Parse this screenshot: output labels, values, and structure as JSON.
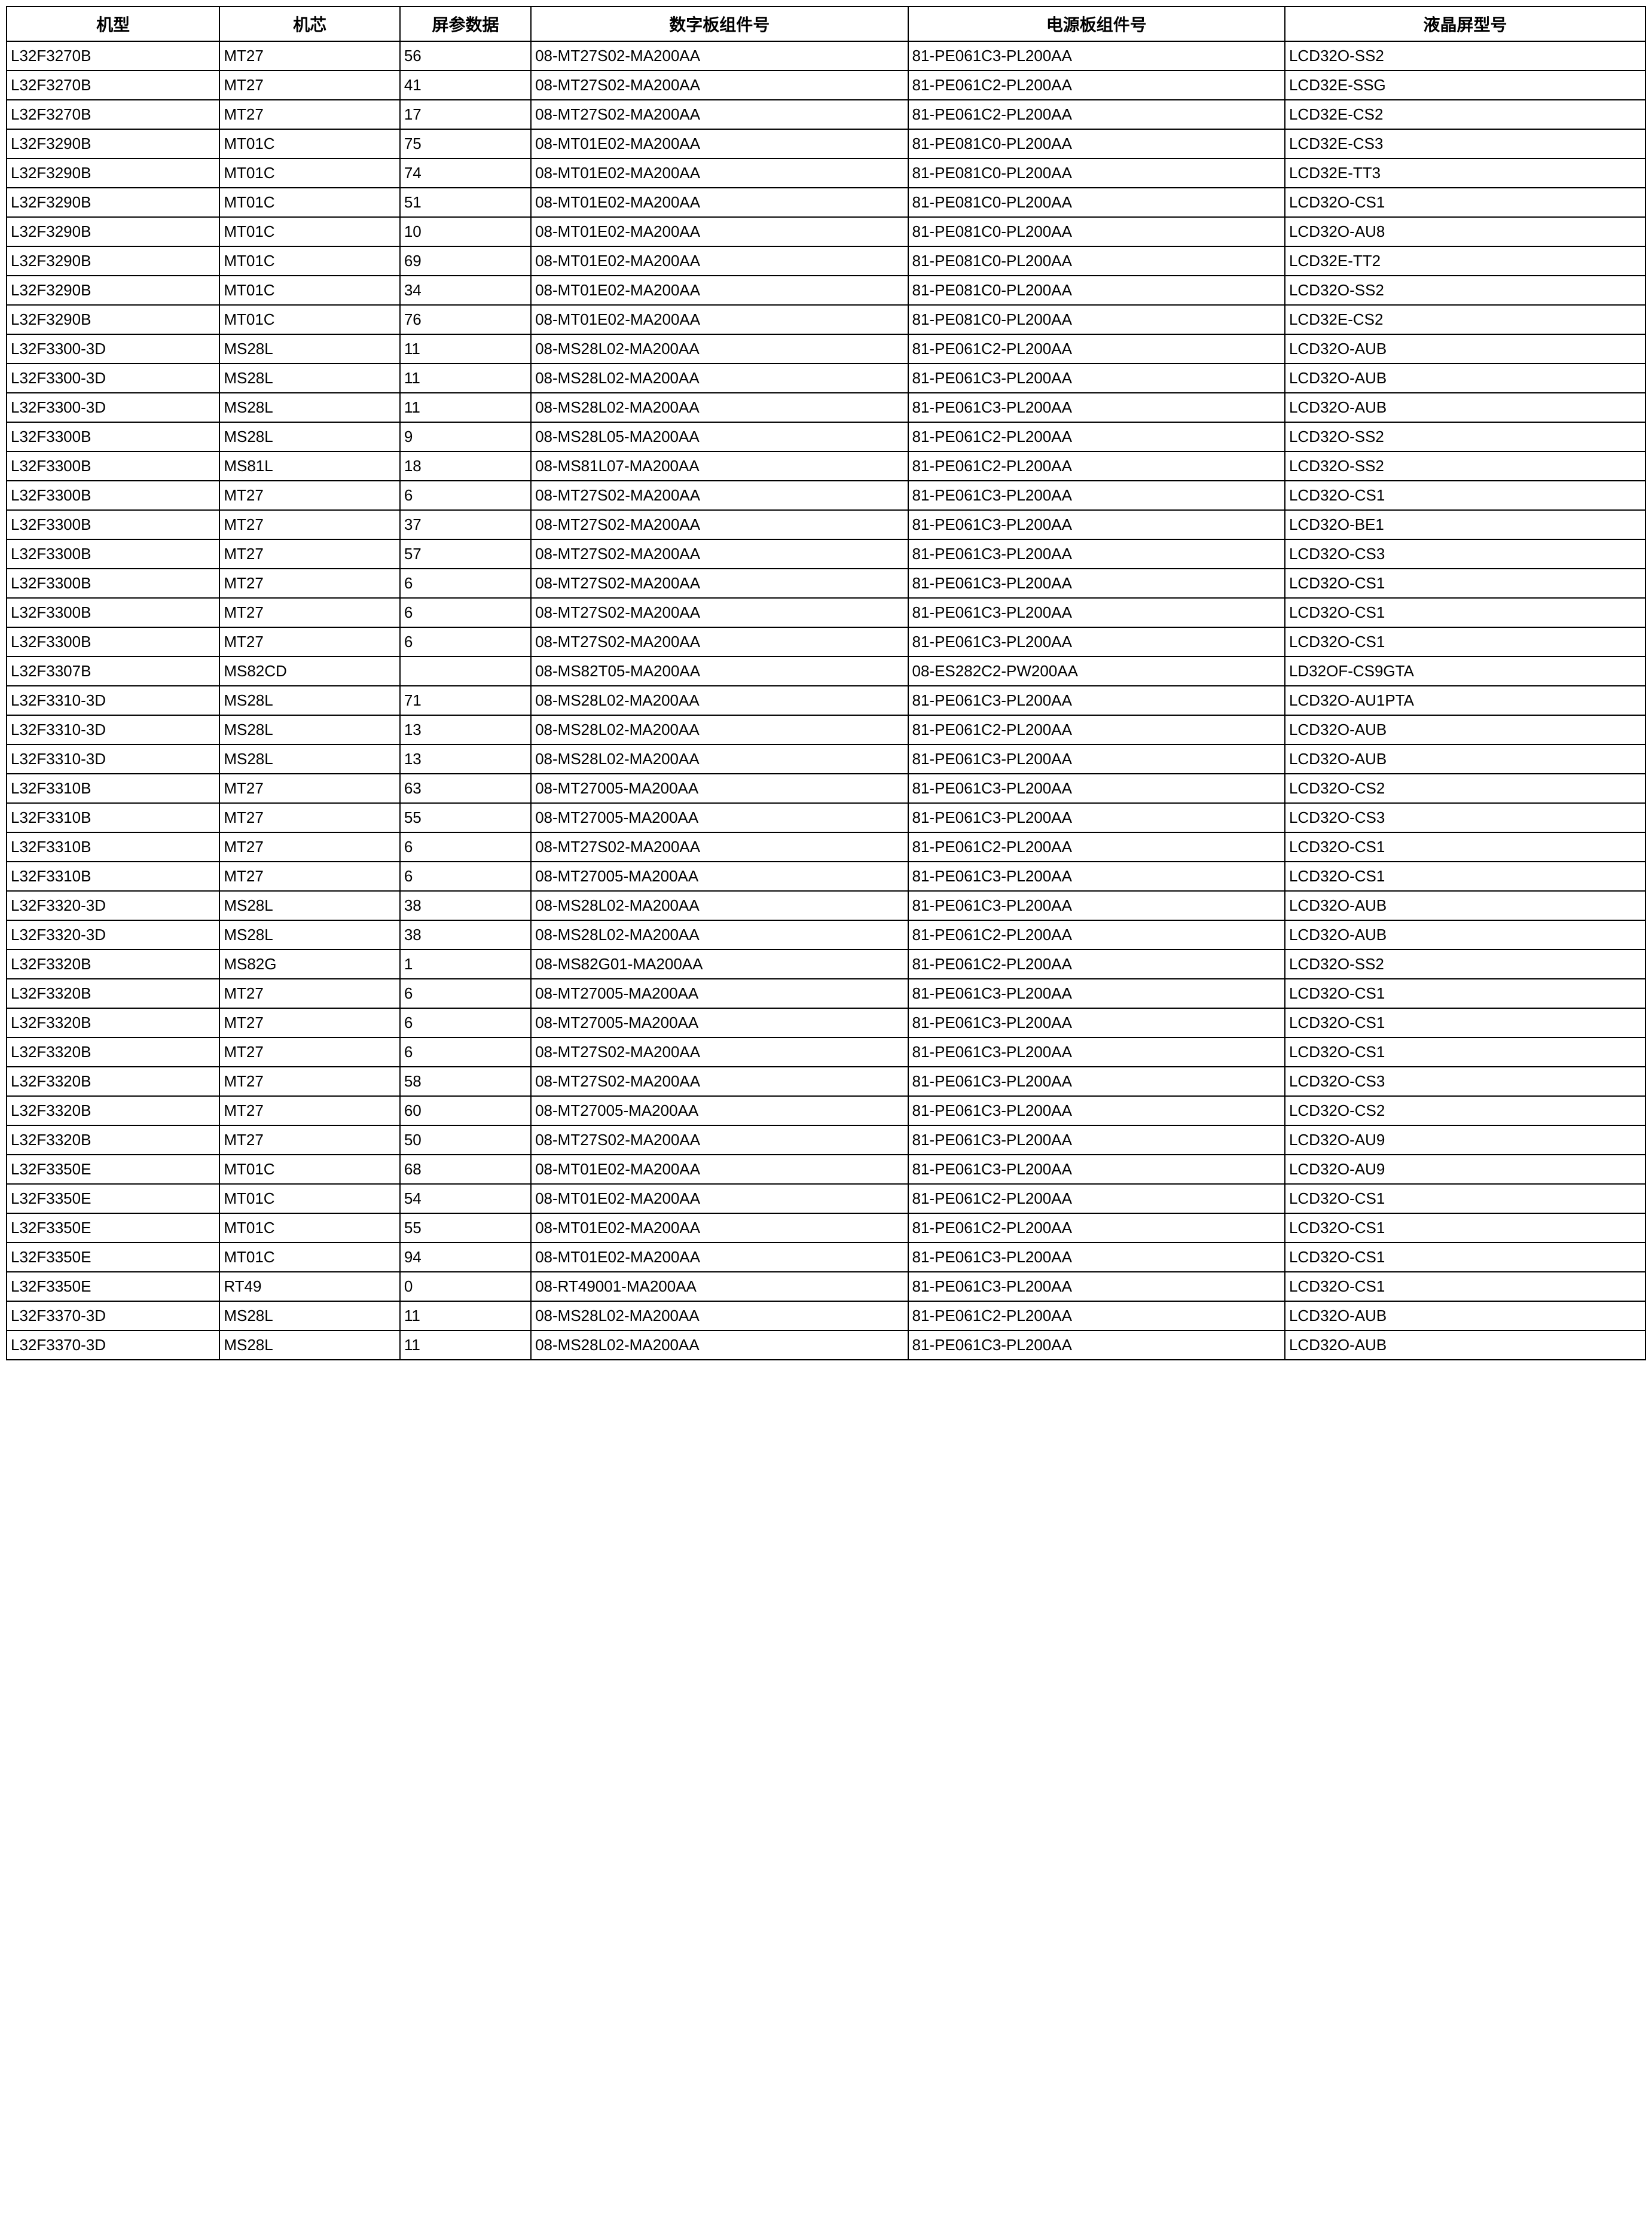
{
  "table": {
    "columns": [
      "机型",
      "机芯",
      "屏参数据",
      "数字板组件号",
      "电源板组件号",
      "液晶屏型号"
    ],
    "column_widths": [
      "13%",
      "11%",
      "8%",
      "23%",
      "23%",
      "22%"
    ],
    "header_fontsize": 28,
    "cell_fontsize": 26,
    "border_color": "#000000",
    "border_width": 2,
    "background_color": "#ffffff",
    "text_color": "#000000",
    "rows": [
      [
        "L32F3270B",
        "MT27",
        "56",
        "08-MT27S02-MA200AA",
        "81-PE061C3-PL200AA",
        "LCD32O-SS2"
      ],
      [
        "L32F3270B",
        "MT27",
        "41",
        "08-MT27S02-MA200AA",
        "81-PE061C2-PL200AA",
        "LCD32E-SSG"
      ],
      [
        "L32F3270B",
        "MT27",
        "17",
        "08-MT27S02-MA200AA",
        "81-PE061C2-PL200AA",
        "LCD32E-CS2"
      ],
      [
        "L32F3290B",
        "MT01C",
        "75",
        "08-MT01E02-MA200AA",
        "81-PE081C0-PL200AA",
        "LCD32E-CS3"
      ],
      [
        "L32F3290B",
        "MT01C",
        "74",
        "08-MT01E02-MA200AA",
        "81-PE081C0-PL200AA",
        "LCD32E-TT3"
      ],
      [
        "L32F3290B",
        "MT01C",
        "51",
        "08-MT01E02-MA200AA",
        "81-PE081C0-PL200AA",
        "LCD32O-CS1"
      ],
      [
        "L32F3290B",
        "MT01C",
        "10",
        "08-MT01E02-MA200AA",
        "81-PE081C0-PL200AA",
        "LCD32O-AU8"
      ],
      [
        "L32F3290B",
        "MT01C",
        "69",
        "08-MT01E02-MA200AA",
        "81-PE081C0-PL200AA",
        "LCD32E-TT2"
      ],
      [
        "L32F3290B",
        "MT01C",
        "34",
        "08-MT01E02-MA200AA",
        "81-PE081C0-PL200AA",
        "LCD32O-SS2"
      ],
      [
        "L32F3290B",
        "MT01C",
        "76",
        "08-MT01E02-MA200AA",
        "81-PE081C0-PL200AA",
        "LCD32E-CS2"
      ],
      [
        "L32F3300-3D",
        "MS28L",
        "11",
        "08-MS28L02-MA200AA",
        "81-PE061C2-PL200AA",
        "LCD32O-AUB"
      ],
      [
        "L32F3300-3D",
        "MS28L",
        "11",
        "08-MS28L02-MA200AA",
        "81-PE061C3-PL200AA",
        "LCD32O-AUB"
      ],
      [
        "L32F3300-3D",
        "MS28L",
        "11",
        "08-MS28L02-MA200AA",
        "81-PE061C3-PL200AA",
        "LCD32O-AUB"
      ],
      [
        "L32F3300B",
        "MS28L",
        "9",
        "08-MS28L05-MA200AA",
        "81-PE061C2-PL200AA",
        "LCD32O-SS2"
      ],
      [
        "L32F3300B",
        "MS81L",
        "18",
        "08-MS81L07-MA200AA",
        "81-PE061C2-PL200AA",
        "LCD32O-SS2"
      ],
      [
        "L32F3300B",
        "MT27",
        "6",
        "08-MT27S02-MA200AA",
        "81-PE061C3-PL200AA",
        "LCD32O-CS1"
      ],
      [
        "L32F3300B",
        "MT27",
        "37",
        "08-MT27S02-MA200AA",
        "81-PE061C3-PL200AA",
        "LCD32O-BE1"
      ],
      [
        "L32F3300B",
        "MT27",
        "57",
        "08-MT27S02-MA200AA",
        "81-PE061C3-PL200AA",
        "LCD32O-CS3"
      ],
      [
        "L32F3300B",
        "MT27",
        "6",
        "08-MT27S02-MA200AA",
        "81-PE061C3-PL200AA",
        "LCD32O-CS1"
      ],
      [
        "L32F3300B",
        "MT27",
        "6",
        "08-MT27S02-MA200AA",
        "81-PE061C3-PL200AA",
        "LCD32O-CS1"
      ],
      [
        "L32F3300B",
        "MT27",
        "6",
        "08-MT27S02-MA200AA",
        "81-PE061C3-PL200AA",
        "LCD32O-CS1"
      ],
      [
        "L32F3307B",
        "MS82CD",
        "",
        "08-MS82T05-MA200AA",
        "08-ES282C2-PW200AA",
        "LD32OF-CS9GTA"
      ],
      [
        "L32F3310-3D",
        "MS28L",
        "71",
        "08-MS28L02-MA200AA",
        "81-PE061C3-PL200AA",
        "LCD32O-AU1PTA"
      ],
      [
        "L32F3310-3D",
        "MS28L",
        "13",
        "08-MS28L02-MA200AA",
        "81-PE061C2-PL200AA",
        "LCD32O-AUB"
      ],
      [
        "L32F3310-3D",
        "MS28L",
        "13",
        "08-MS28L02-MA200AA",
        "81-PE061C3-PL200AA",
        "LCD32O-AUB"
      ],
      [
        "L32F3310B",
        "MT27",
        "63",
        "08-MT27005-MA200AA",
        "81-PE061C3-PL200AA",
        "LCD32O-CS2"
      ],
      [
        "L32F3310B",
        "MT27",
        "55",
        "08-MT27005-MA200AA",
        "81-PE061C3-PL200AA",
        "LCD32O-CS3"
      ],
      [
        "L32F3310B",
        "MT27",
        "6",
        "08-MT27S02-MA200AA",
        "81-PE061C2-PL200AA",
        "LCD32O-CS1"
      ],
      [
        "L32F3310B",
        "MT27",
        "6",
        "08-MT27005-MA200AA",
        "81-PE061C3-PL200AA",
        "LCD32O-CS1"
      ],
      [
        "L32F3320-3D",
        "MS28L",
        "38",
        "08-MS28L02-MA200AA",
        "81-PE061C3-PL200AA",
        "LCD32O-AUB"
      ],
      [
        "L32F3320-3D",
        "MS28L",
        "38",
        "08-MS28L02-MA200AA",
        "81-PE061C2-PL200AA",
        "LCD32O-AUB"
      ],
      [
        "L32F3320B",
        "MS82G",
        "1",
        "08-MS82G01-MA200AA",
        "81-PE061C2-PL200AA",
        "LCD32O-SS2"
      ],
      [
        "L32F3320B",
        "MT27",
        "6",
        "08-MT27005-MA200AA",
        "81-PE061C3-PL200AA",
        "LCD32O-CS1"
      ],
      [
        "L32F3320B",
        "MT27",
        "6",
        "08-MT27005-MA200AA",
        "81-PE061C3-PL200AA",
        "LCD32O-CS1"
      ],
      [
        "L32F3320B",
        "MT27",
        "6",
        "08-MT27S02-MA200AA",
        "81-PE061C3-PL200AA",
        "LCD32O-CS1"
      ],
      [
        "L32F3320B",
        "MT27",
        "58",
        "08-MT27S02-MA200AA",
        "81-PE061C3-PL200AA",
        "LCD32O-CS3"
      ],
      [
        "L32F3320B",
        "MT27",
        "60",
        "08-MT27005-MA200AA",
        "81-PE061C3-PL200AA",
        "LCD32O-CS2"
      ],
      [
        "L32F3320B",
        "MT27",
        "50",
        "08-MT27S02-MA200AA",
        "81-PE061C3-PL200AA",
        "LCD32O-AU9"
      ],
      [
        "L32F3350E",
        "MT01C",
        "68",
        "08-MT01E02-MA200AA",
        "81-PE061C3-PL200AA",
        "LCD32O-AU9"
      ],
      [
        "L32F3350E",
        "MT01C",
        "54",
        "08-MT01E02-MA200AA",
        "81-PE061C2-PL200AA",
        "LCD32O-CS1"
      ],
      [
        "L32F3350E",
        "MT01C",
        "55",
        "08-MT01E02-MA200AA",
        "81-PE061C2-PL200AA",
        "LCD32O-CS1"
      ],
      [
        "L32F3350E",
        "MT01C",
        "94",
        "08-MT01E02-MA200AA",
        "81-PE061C3-PL200AA",
        "LCD32O-CS1"
      ],
      [
        "L32F3350E",
        "RT49",
        "0",
        "08-RT49001-MA200AA",
        "81-PE061C3-PL200AA",
        "LCD32O-CS1"
      ],
      [
        "L32F3370-3D",
        "MS28L",
        "11",
        "08-MS28L02-MA200AA",
        "81-PE061C2-PL200AA",
        "LCD32O-AUB"
      ],
      [
        "L32F3370-3D",
        "MS28L",
        "11",
        "08-MS28L02-MA200AA",
        "81-PE061C3-PL200AA",
        "LCD32O-AUB"
      ]
    ]
  }
}
